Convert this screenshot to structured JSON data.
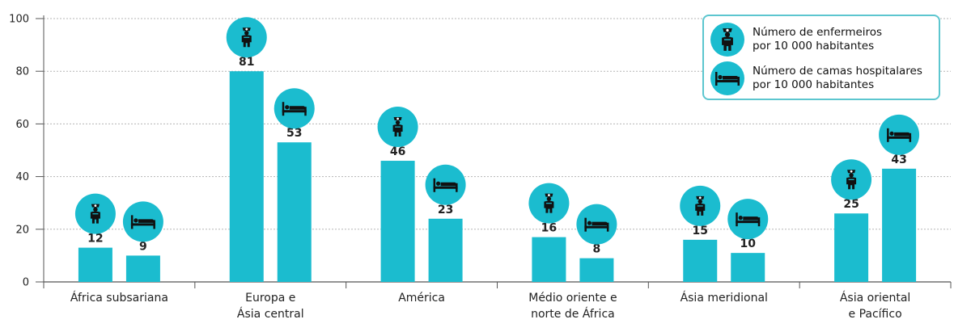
{
  "chart_data": {
    "type": "bar",
    "categories": [
      [
        "África subsariana"
      ],
      [
        "Europa e",
        "Ásia central"
      ],
      [
        "América"
      ],
      [
        "Médio oriente e",
        "norte de África"
      ],
      [
        "Ásia meridional"
      ],
      [
        "Ásia oriental",
        "e Pacífico"
      ]
    ],
    "series": [
      {
        "name": "Número de enfermeiros por 10 000 habitantes",
        "icon": "nurse-icon",
        "values": [
          12,
          81,
          46,
          16,
          15,
          25
        ]
      },
      {
        "name": "Número de camas hospitalares por 10 000 habitantes",
        "icon": "hospital-bed-icon",
        "values": [
          9,
          53,
          23,
          8,
          10,
          43
        ]
      }
    ],
    "bar_heights_drawn": [
      [
        13,
        80,
        46,
        17,
        16,
        26
      ],
      [
        10,
        53,
        24,
        9,
        11,
        43
      ]
    ],
    "ylim": [
      0,
      100
    ],
    "yticks": [
      0,
      20,
      40,
      60,
      80,
      100
    ],
    "grid": true,
    "legend_position": "top-right",
    "colors": {
      "bar": "#1bbccf",
      "icon_circle": "#1bbccf",
      "legend_border": "#5cc6cf",
      "grid": "#b5b5b5"
    }
  },
  "legend": {
    "items": [
      {
        "lines": [
          "Número de enfermeiros",
          "por 10 000 habitantes"
        ]
      },
      {
        "lines": [
          "Número de camas hospitalares",
          "por 10 000 habitantes"
        ]
      }
    ]
  }
}
